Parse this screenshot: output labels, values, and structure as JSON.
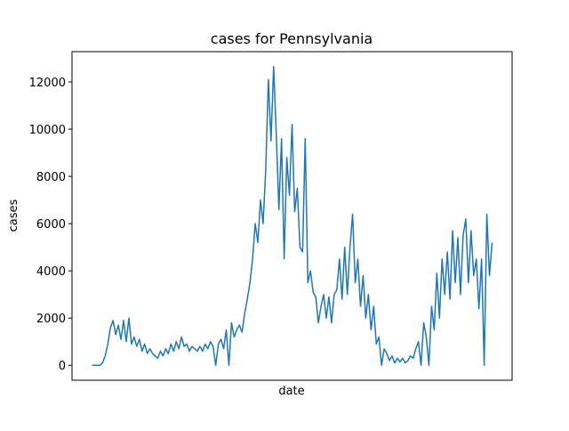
{
  "chart_data": {
    "type": "line",
    "title": "cases for Pennsylvania",
    "xlabel": "date",
    "ylabel": "cases",
    "series": [
      {
        "color": "#1f77b4",
        "values": [
          0,
          0,
          0,
          0,
          100,
          400,
          900,
          1600,
          1900,
          1300,
          1700,
          1100,
          1900,
          1000,
          2000,
          900,
          1200,
          800,
          1100,
          600,
          900,
          500,
          700,
          500,
          400,
          300,
          600,
          400,
          700,
          500,
          900,
          600,
          1000,
          700,
          1200,
          800,
          900,
          600,
          800,
          700,
          600,
          800,
          600,
          900,
          700,
          1000,
          800,
          0,
          900,
          1100,
          700,
          1500,
          0,
          1800,
          1200,
          1500,
          1700,
          1400,
          2200,
          2800,
          3500,
          4500,
          6000,
          5200,
          7000,
          6000,
          8300,
          12100,
          9500,
          12650,
          9800,
          6600,
          9600,
          4500,
          8800,
          7200,
          10200,
          6500,
          7500,
          5000,
          4800,
          9600,
          3500,
          4000,
          3100,
          2900,
          1800,
          2500,
          3000,
          2000,
          2900,
          1800,
          3000,
          3200,
          4500,
          2800,
          5000,
          3000,
          5000,
          6400,
          3500,
          4500,
          2500,
          3800,
          2000,
          3000,
          1500,
          2500,
          900,
          1200,
          0,
          700,
          500,
          200,
          400,
          100,
          300,
          150,
          300,
          100,
          200,
          400,
          300,
          700,
          1000,
          0,
          1800,
          1200,
          0,
          2500,
          1500,
          3900,
          2000,
          4500,
          3000,
          4800,
          2800,
          5700,
          3500,
          5400,
          3000,
          5500,
          6200,
          3500,
          5700,
          3800,
          4500,
          2400,
          4500,
          0,
          6400,
          3800,
          5200
        ]
      }
    ],
    "ylim": [
      -632,
      13282
    ],
    "yticks": [
      0,
      2000,
      4000,
      6000,
      8000,
      10000,
      12000
    ]
  }
}
